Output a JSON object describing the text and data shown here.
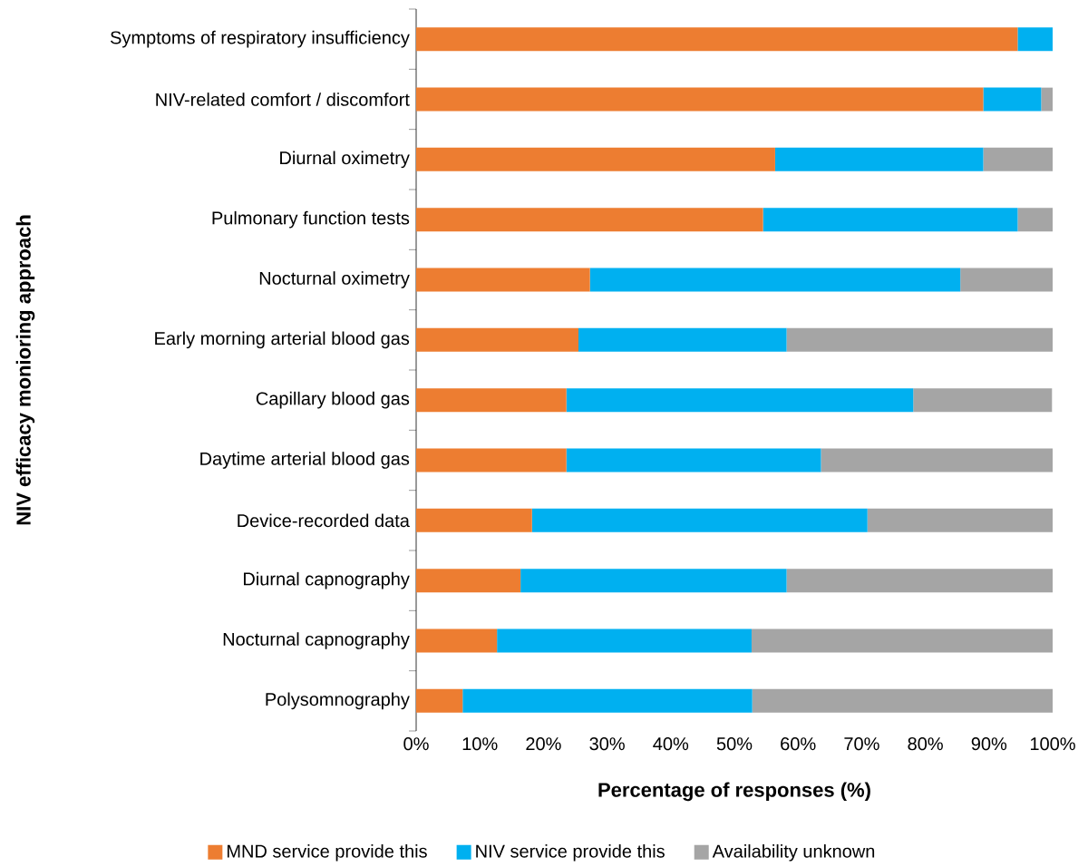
{
  "chart_data": {
    "type": "bar",
    "orientation": "horizontal",
    "stacked": true,
    "xlabel": "Percentage of responses (%)",
    "ylabel": "NIV efficacy monioring approach",
    "categories": [
      "Symptoms of respiratory insufficiency",
      "NIV-related comfort / discomfort",
      "Diurnal oximetry",
      "Pulmonary function tests",
      "Nocturnal oximetry",
      "Early morning arterial blood gas",
      "Capillary blood gas",
      "Daytime arterial blood gas",
      "Device-recorded data",
      "Diurnal capnography",
      "Nocturnal capnography",
      "Polysomnography"
    ],
    "series": [
      {
        "name": "MND service provide this",
        "color": "#ed7d31",
        "values": [
          94.5,
          89.1,
          56.4,
          54.5,
          27.3,
          25.5,
          23.6,
          23.6,
          18.2,
          16.4,
          12.7,
          7.3
        ]
      },
      {
        "name": "NIV service provide this",
        "color": "#00b0f0",
        "values": [
          5.5,
          9.1,
          32.7,
          40.0,
          58.2,
          32.7,
          54.5,
          40.0,
          52.7,
          41.8,
          40.0,
          45.5
        ]
      },
      {
        "name": "Availability unknown",
        "color": "#a5a5a5",
        "values": [
          0,
          1.8,
          10.9,
          5.5,
          14.5,
          41.8,
          21.8,
          36.4,
          29.1,
          41.8,
          47.3,
          47.3
        ]
      }
    ],
    "xlim": [
      0,
      100
    ],
    "xticks": [
      {
        "value": 0,
        "label": "0%"
      },
      {
        "value": 10,
        "label": "10%"
      },
      {
        "value": 20,
        "label": "20%"
      },
      {
        "value": 30,
        "label": "30%"
      },
      {
        "value": 40,
        "label": "40%"
      },
      {
        "value": 50,
        "label": "50%"
      },
      {
        "value": 60,
        "label": "60%"
      },
      {
        "value": 70,
        "label": "70%"
      },
      {
        "value": 80,
        "label": "80%"
      },
      {
        "value": 90,
        "label": "90%"
      },
      {
        "value": 100,
        "label": "100%"
      }
    ],
    "legend": "bottom",
    "grid": false
  }
}
